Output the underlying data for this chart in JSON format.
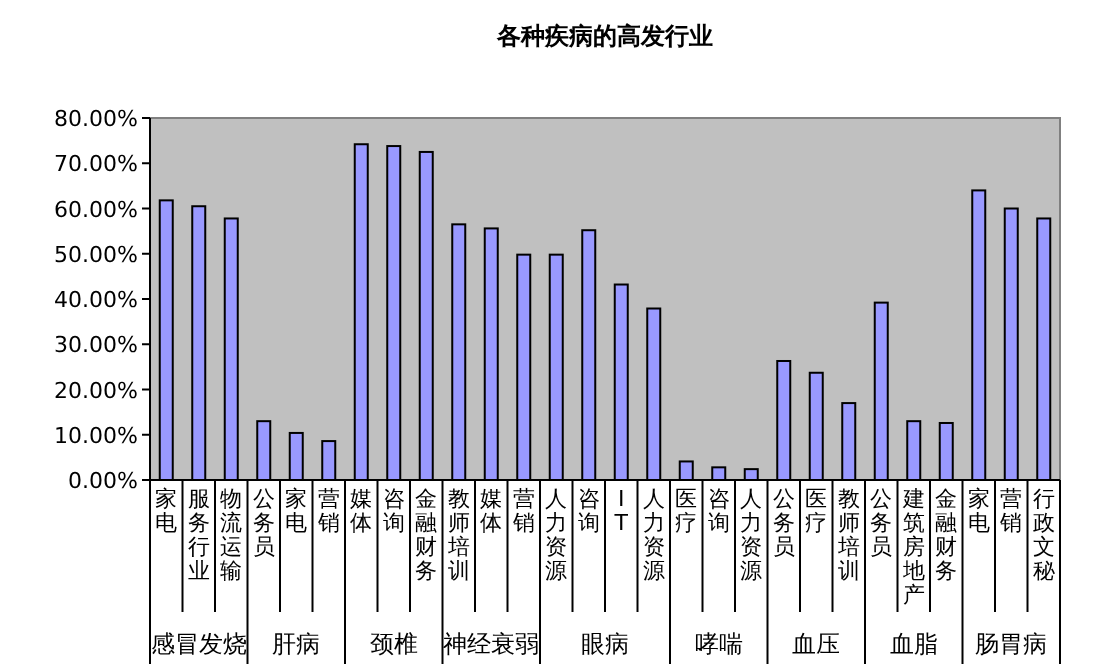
{
  "chart_data": {
    "type": "bar",
    "title": "各种疾病的高发行业",
    "categories": [
      "家电",
      "服务行业",
      "物流运输",
      "公务员",
      "家电",
      "营销",
      "媒体",
      "咨询",
      "金融财务",
      "教师培训",
      "媒体",
      "营销",
      "人力资源",
      "咨询",
      "IT",
      "人力资源",
      "医疗",
      "咨询",
      "人力资源",
      "公务员",
      "医疗",
      "教师培训",
      "公务员",
      "建筑房地产",
      "金融财务",
      "家电",
      "营销",
      "行政文秘"
    ],
    "values": [
      61.8,
      60.5,
      57.8,
      13.0,
      10.4,
      8.6,
      74.2,
      73.8,
      72.5,
      56.5,
      55.6,
      49.8,
      49.8,
      55.2,
      43.2,
      37.9,
      4.1,
      2.8,
      2.4,
      26.3,
      23.7,
      17.0,
      39.2,
      13.0,
      12.6,
      64.0,
      60.0,
      57.8
    ],
    "color": "#9999ff",
    "ylim": [
      0,
      80
    ],
    "yticks": [
      {
        "value": 0,
        "label": "0.00%"
      },
      {
        "value": 10,
        "label": "10.00%"
      },
      {
        "value": 20,
        "label": "20.00%"
      },
      {
        "value": 30,
        "label": "30.00%"
      },
      {
        "value": 40,
        "label": "40.00%"
      },
      {
        "value": 50,
        "label": "50.00%"
      },
      {
        "value": 60,
        "label": "60.00%"
      },
      {
        "value": 70,
        "label": "70.00%"
      },
      {
        "value": 80,
        "label": "80.00%"
      }
    ],
    "grid": false,
    "annotations": [
      "感冒发烧",
      "肝病",
      "颈椎",
      "神经衰弱",
      "眼病",
      "哮喘",
      "血压",
      "血脂",
      "肠胃病"
    ]
  }
}
